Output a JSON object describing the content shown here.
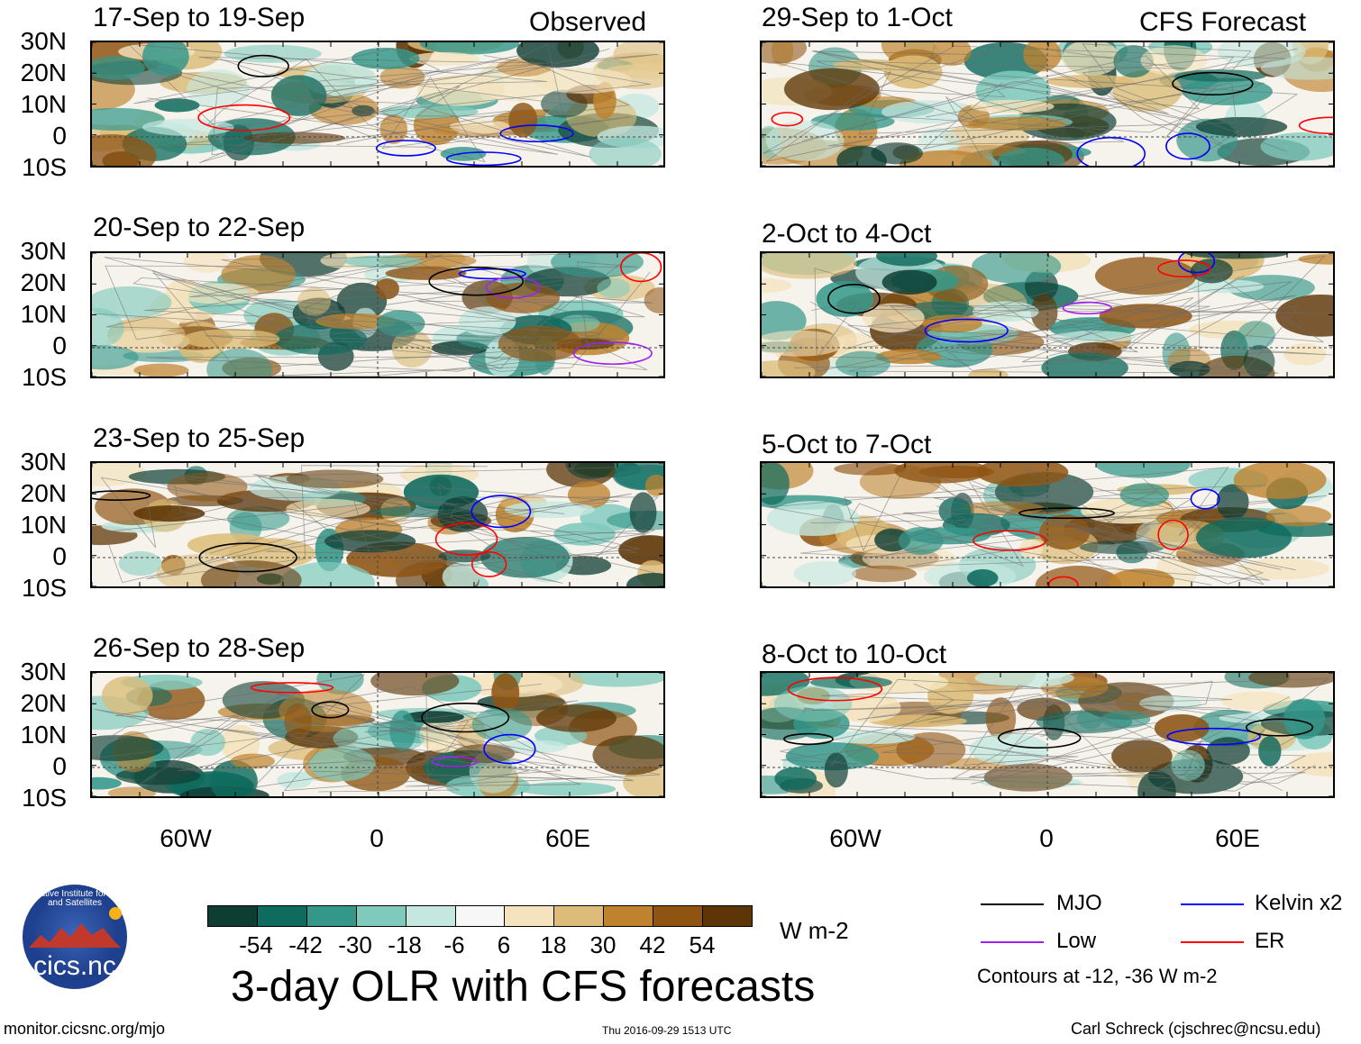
{
  "labels": {
    "observed": "Observed",
    "forecast": "CFS Forecast",
    "lat_ticks": [
      "30N",
      "20N",
      "10N",
      "0",
      "10S"
    ],
    "lon_ticks": [
      "60W",
      "0",
      "60E"
    ]
  },
  "panels_left": [
    {
      "title": "17-Sep to 19-Sep"
    },
    {
      "title": "20-Sep to 22-Sep"
    },
    {
      "title": "23-Sep to 25-Sep"
    },
    {
      "title": "26-Sep to 28-Sep"
    }
  ],
  "panels_right": [
    {
      "title": "29-Sep to 1-Oct"
    },
    {
      "title": "2-Oct to 4-Oct"
    },
    {
      "title": "5-Oct to 7-Oct"
    },
    {
      "title": "8-Oct to 10-Oct"
    }
  ],
  "colorbar": {
    "labels": [
      "-54",
      "-42",
      "-30",
      "-18",
      "-6",
      "6",
      "18",
      "30",
      "42",
      "54"
    ],
    "colors": [
      "#0d3d33",
      "#0f6b5e",
      "#34978a",
      "#7fcabd",
      "#c4e8e0",
      "#f7f7f7",
      "#f4e3bd",
      "#dcbc78",
      "#bf832f",
      "#8f5412",
      "#5d3506"
    ],
    "units": "W m-2"
  },
  "legend": {
    "items": [
      {
        "label": "MJO",
        "color": "#000000"
      },
      {
        "label": "Kelvin x2",
        "color": "#0000ff"
      },
      {
        "label": "Low",
        "color": "#a020f0"
      },
      {
        "label": "ER",
        "color": "#ff0000"
      }
    ],
    "note": "Contours at -12, -36 W m-2"
  },
  "title": "3-day OLR with CFS forecasts",
  "logo_text": "cics.nc",
  "logo_ring_text": "Cooperative Institute for Climate and Satellites",
  "footer": {
    "url": "monitor.cicsnc.org/mjo",
    "timestamp": "Thu 2016-09-29 1513 UTC",
    "author": "Carl Schreck (cjschrec@ncsu.edu)"
  }
}
